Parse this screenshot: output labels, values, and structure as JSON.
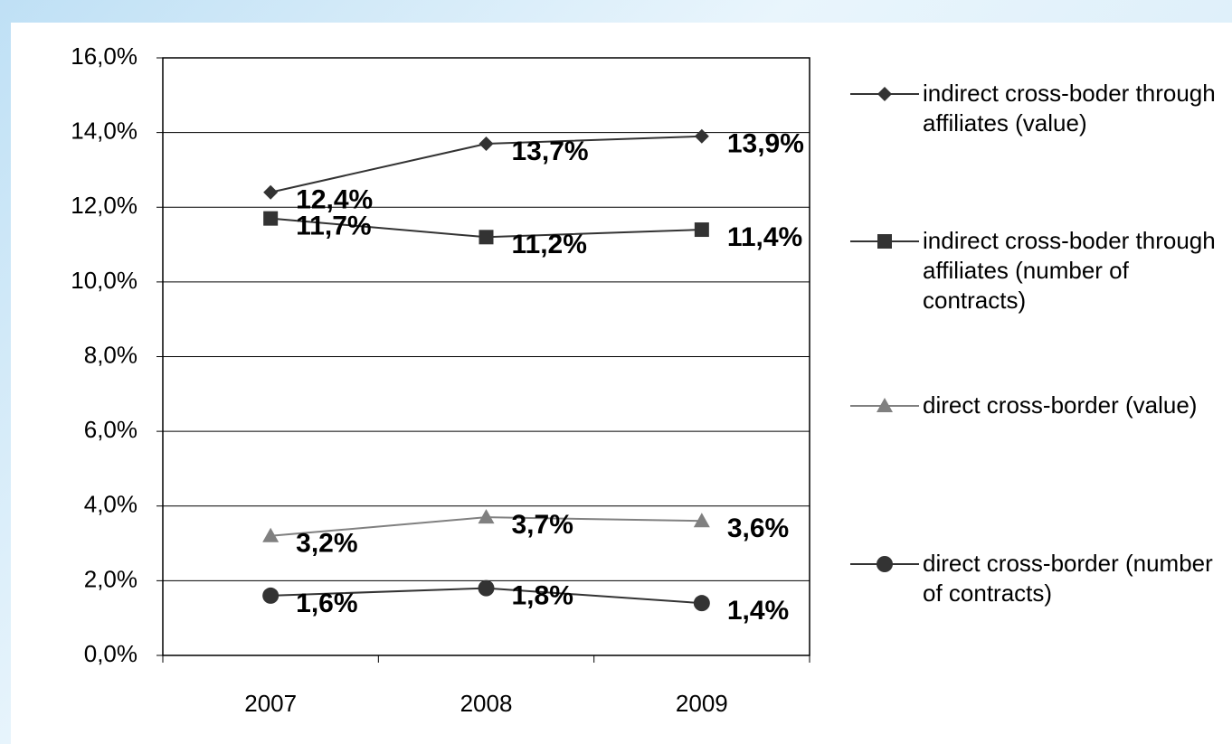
{
  "chart_data": {
    "type": "line",
    "categories": [
      "2007",
      "2008",
      "2009"
    ],
    "series": [
      {
        "name": "indirect cross-boder through affiliates (value)",
        "color": "#333333",
        "marker": "diamond",
        "values": [
          12.4,
          13.7,
          13.9
        ],
        "value_labels": [
          "12,4%",
          "13,7%",
          "13,9%"
        ]
      },
      {
        "name": "indirect cross-boder through affiliates (number of contracts)",
        "color": "#333333",
        "marker": "square",
        "values": [
          11.7,
          11.2,
          11.4
        ],
        "value_labels": [
          "11,7%",
          "11,2%",
          "11,4%"
        ]
      },
      {
        "name": "direct cross-border (value)",
        "color": "#808080",
        "marker": "triangle",
        "values": [
          3.2,
          3.7,
          3.6
        ],
        "value_labels": [
          "3,2%",
          "3,7%",
          "3,6%"
        ]
      },
      {
        "name": "direct cross-border (number of contracts)",
        "color": "#333333",
        "marker": "circle",
        "values": [
          1.6,
          1.8,
          1.4
        ],
        "value_labels": [
          "1,6%",
          "1,8%",
          "1,4%"
        ]
      }
    ],
    "ylim": [
      0,
      16
    ],
    "yticks": [
      {
        "value": 0,
        "label": "0,0%"
      },
      {
        "value": 2,
        "label": "2,0%"
      },
      {
        "value": 4,
        "label": "4,0%"
      },
      {
        "value": 6,
        "label": "6,0%"
      },
      {
        "value": 8,
        "label": "8,0%"
      },
      {
        "value": 10,
        "label": "10,0%"
      },
      {
        "value": 12,
        "label": "12,0%"
      },
      {
        "value": 14,
        "label": "14,0%"
      },
      {
        "value": 16,
        "label": "16,0%"
      }
    ],
    "grid": true
  }
}
